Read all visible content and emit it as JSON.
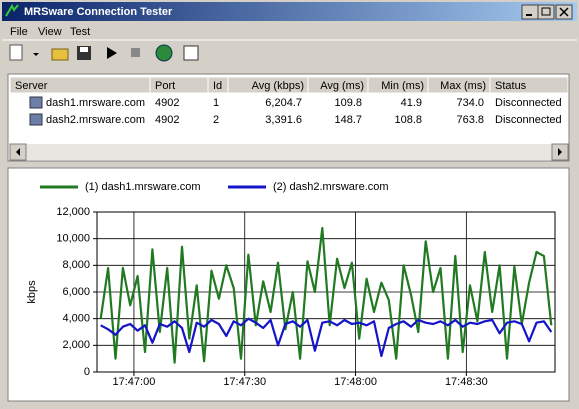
{
  "window": {
    "title": "MRSware Connection Tester"
  },
  "menu": [
    "File",
    "View",
    "Test"
  ],
  "table": {
    "columns": [
      "Server",
      "Port",
      "Id",
      "Avg (kbps)",
      "Avg (ms)",
      "Min (ms)",
      "Max (ms)",
      "Status"
    ],
    "rows": [
      [
        "dash1.mrsware.com",
        "4902",
        "1",
        "6,204.7",
        "109.8",
        "41.9",
        "734.0",
        "Disconnected"
      ],
      [
        "dash2.mrsware.com",
        "4902",
        "2",
        "3,391.6",
        "148.7",
        "108.8",
        "763.8",
        "Disconnected"
      ]
    ]
  },
  "chart_data": {
    "type": "line",
    "y_label": "kbps",
    "legend": "top",
    "grid": true,
    "ylim": [
      0,
      12000
    ],
    "yticks": [
      0,
      {
        "value": 2000,
        "label": "2,000"
      },
      {
        "value": 4000,
        "label": "4,000"
      },
      {
        "value": 6000,
        "label": "6,000"
      },
      {
        "value": 8000,
        "label": "8,000"
      },
      {
        "value": 10000,
        "label": "10,000"
      },
      {
        "value": 12000,
        "label": "12,000"
      }
    ],
    "xlim": [
      "17:46:50",
      "17:48:54"
    ],
    "xticks": [
      "17:47:00",
      "17:47:30",
      "17:48:00",
      "17:48:30"
    ],
    "x": [
      "17:46:51",
      "17:46:53",
      "17:46:55",
      "17:46:57",
      "17:46:59",
      "17:47:01",
      "17:47:03",
      "17:47:05",
      "17:47:07",
      "17:47:09",
      "17:47:11",
      "17:47:13",
      "17:47:15",
      "17:47:17",
      "17:47:19",
      "17:47:21",
      "17:47:23",
      "17:47:25",
      "17:47:27",
      "17:47:29",
      "17:47:31",
      "17:47:33",
      "17:47:35",
      "17:47:37",
      "17:47:39",
      "17:47:41",
      "17:47:43",
      "17:47:45",
      "17:47:47",
      "17:47:49",
      "17:47:51",
      "17:47:53",
      "17:47:55",
      "17:47:57",
      "17:47:59",
      "17:48:01",
      "17:48:03",
      "17:48:05",
      "17:48:07",
      "17:48:09",
      "17:48:11",
      "17:48:13",
      "17:48:15",
      "17:48:17",
      "17:48:19",
      "17:48:21",
      "17:48:23",
      "17:48:25",
      "17:48:27",
      "17:48:29",
      "17:48:31",
      "17:48:33",
      "17:48:35",
      "17:48:37",
      "17:48:39",
      "17:48:41",
      "17:48:43",
      "17:48:45",
      "17:48:47",
      "17:48:49",
      "17:48:51",
      "17:48:53"
    ],
    "series": [
      {
        "name": "(1) dash1.mrsware.com",
        "color": "#217a21",
        "values": [
          4000,
          7800,
          1000,
          7800,
          5000,
          7200,
          1500,
          9200,
          3000,
          7800,
          700,
          9400,
          2500,
          6500,
          800,
          7600,
          5500,
          8000,
          6300,
          1000,
          8800,
          3500,
          6800,
          4500,
          8200,
          3200,
          6000,
          1000,
          8300,
          6000,
          10800,
          3500,
          8500,
          6300,
          8200,
          2500,
          7000,
          4500,
          6700,
          5400,
          1000,
          8000,
          5800,
          3000,
          9800,
          6000,
          7800,
          1000,
          8700,
          1500,
          6500,
          3800,
          9000,
          4500,
          8000,
          1000,
          7900,
          3600,
          6700,
          9000,
          8700,
          3500
        ]
      },
      {
        "name": "(2) dash2.mrsware.com",
        "color": "#1414c8",
        "values": [
          3500,
          3200,
          2800,
          3400,
          3600,
          3100,
          3500,
          2200,
          3600,
          3400,
          3800,
          3300,
          1500,
          3700,
          3400,
          3900,
          3600,
          2700,
          3800,
          3500,
          4000,
          3700,
          3300,
          3900,
          2000,
          3600,
          3800,
          3400,
          3900,
          1600,
          3700,
          3800,
          3500,
          3900,
          3600,
          3700,
          3500,
          3800,
          1200,
          3300,
          3600,
          3800,
          3400,
          3900,
          3700,
          3600,
          3800,
          3500,
          3900,
          3400,
          3700,
          3600,
          3800,
          3900,
          2900,
          3700,
          3800,
          3600,
          2300,
          3700,
          3800,
          3000
        ]
      }
    ]
  }
}
